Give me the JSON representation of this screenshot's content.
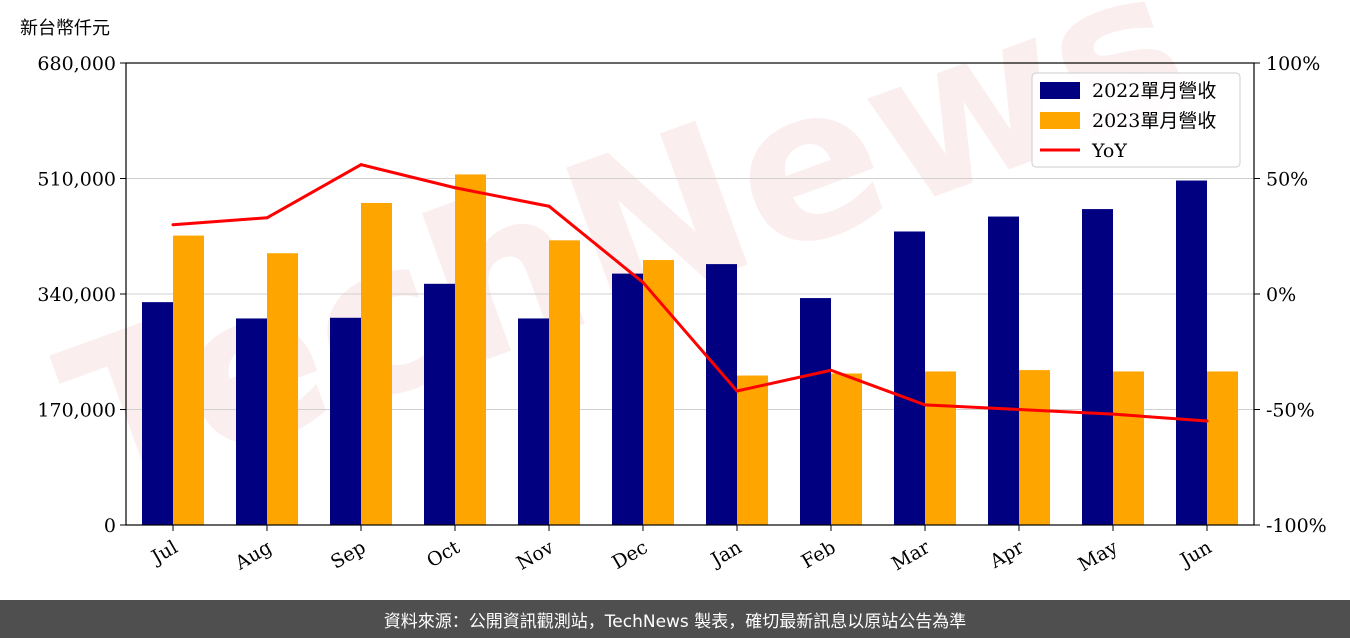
{
  "unit_label": "新台幣仟元",
  "footer_text": "資料來源：公開資訊觀測站，TechNews 製表，確切最新訊息以原站公告為準",
  "watermark": "TechNews",
  "chart_data": {
    "type": "bar",
    "categories": [
      "Jul",
      "Aug",
      "Sep",
      "Oct",
      "Nov",
      "Dec",
      "Jan",
      "Feb",
      "Mar",
      "Apr",
      "May",
      "Jun"
    ],
    "series": [
      {
        "name": "2022單月營收",
        "type": "bar",
        "color": "#000080",
        "values": [
          328000,
          304000,
          305000,
          355000,
          304000,
          370000,
          384000,
          334000,
          432000,
          454000,
          465000,
          507000
        ]
      },
      {
        "name": "2023單月營收",
        "type": "bar",
        "color": "#ffa500",
        "values": [
          426000,
          400000,
          474000,
          516000,
          419000,
          390000,
          220000,
          223000,
          226000,
          228000,
          226000,
          226000
        ]
      },
      {
        "name": "YoY",
        "type": "line",
        "axis": "right",
        "color": "#ff0000",
        "unit": "%",
        "values": [
          30,
          33,
          56,
          46,
          38,
          5,
          -42,
          -33,
          -48,
          -50,
          -52,
          -55
        ]
      }
    ],
    "ylim": [
      0,
      680000
    ],
    "yticks": [
      "0",
      "170,000",
      "340,000",
      "510,000",
      "680,000"
    ],
    "y2lim": [
      -100,
      100
    ],
    "y2ticks": [
      "-100%",
      "-50%",
      "0%",
      "50%",
      "100%"
    ],
    "grid": "horizontal",
    "legend_position": "top-right"
  }
}
